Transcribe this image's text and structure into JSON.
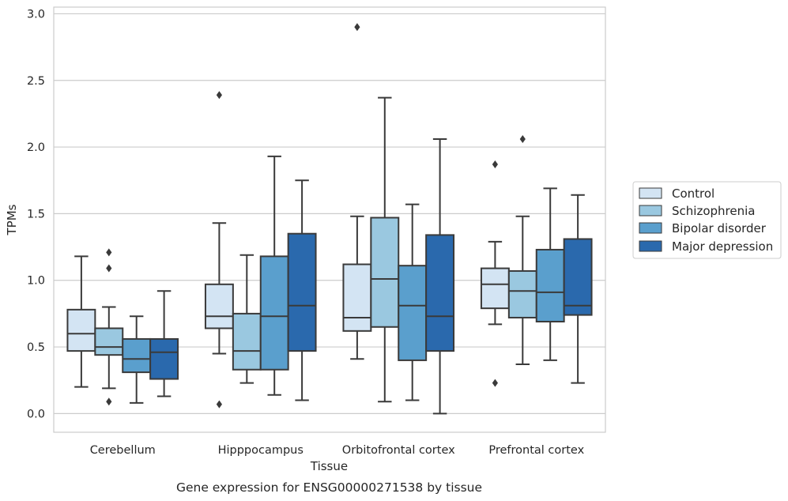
{
  "chart_data": {
    "type": "box",
    "title": "",
    "caption": "Gene expression for ENSG00000271538 by tissue",
    "xlabel": "Tissue",
    "ylabel": "TPMs",
    "ylim": [
      -0.14,
      3.05
    ],
    "yticks": [
      "0.0",
      "0.5",
      "1.0",
      "1.5",
      "2.0",
      "2.5",
      "3.0"
    ],
    "ytick_values": [
      0.0,
      0.5,
      1.0,
      1.5,
      2.0,
      2.5,
      3.0
    ],
    "grid": "horizontal",
    "legend_position": "right",
    "categories": [
      "Cerebellum",
      "Hipppocampus",
      "Orbitofrontal cortex",
      "Prefrontal cortex"
    ],
    "series": [
      {
        "name": "Control",
        "color": "#d3e4f3",
        "boxes": [
          {
            "whisker_low": 0.2,
            "q1": 0.47,
            "median": 0.6,
            "q3": 0.78,
            "whisker_high": 1.18,
            "outliers": []
          },
          {
            "whisker_low": 0.45,
            "q1": 0.64,
            "median": 0.73,
            "q3": 0.97,
            "whisker_high": 1.43,
            "outliers": [
              2.39,
              0.07
            ]
          },
          {
            "whisker_low": 0.41,
            "q1": 0.62,
            "median": 0.72,
            "q3": 1.12,
            "whisker_high": 1.48,
            "outliers": [
              2.9
            ]
          },
          {
            "whisker_low": 0.67,
            "q1": 0.79,
            "median": 0.97,
            "q3": 1.09,
            "whisker_high": 1.29,
            "outliers": [
              1.87,
              0.23
            ]
          }
        ]
      },
      {
        "name": "Schizophrenia",
        "color": "#9ac8e0",
        "boxes": [
          {
            "whisker_low": 0.19,
            "q1": 0.44,
            "median": 0.5,
            "q3": 0.64,
            "whisker_high": 0.8,
            "outliers": [
              1.21,
              1.09,
              0.09
            ]
          },
          {
            "whisker_low": 0.23,
            "q1": 0.33,
            "median": 0.47,
            "q3": 0.75,
            "whisker_high": 1.19,
            "outliers": []
          },
          {
            "whisker_low": 0.09,
            "q1": 0.65,
            "median": 1.01,
            "q3": 1.47,
            "whisker_high": 2.37,
            "outliers": []
          },
          {
            "whisker_low": 0.37,
            "q1": 0.72,
            "median": 0.92,
            "q3": 1.07,
            "whisker_high": 1.48,
            "outliers": [
              2.06
            ]
          }
        ]
      },
      {
        "name": "Bipolar disorder",
        "color": "#5a9fcd",
        "boxes": [
          {
            "whisker_low": 0.08,
            "q1": 0.31,
            "median": 0.41,
            "q3": 0.56,
            "whisker_high": 0.73,
            "outliers": []
          },
          {
            "whisker_low": 0.14,
            "q1": 0.33,
            "median": 0.73,
            "q3": 1.18,
            "whisker_high": 1.93,
            "outliers": []
          },
          {
            "whisker_low": 0.1,
            "q1": 0.4,
            "median": 0.81,
            "q3": 1.11,
            "whisker_high": 1.57,
            "outliers": []
          },
          {
            "whisker_low": 0.4,
            "q1": 0.69,
            "median": 0.91,
            "q3": 1.23,
            "whisker_high": 1.69,
            "outliers": []
          }
        ]
      },
      {
        "name": "Major depression",
        "color": "#2a69ad",
        "boxes": [
          {
            "whisker_low": 0.13,
            "q1": 0.26,
            "median": 0.46,
            "q3": 0.56,
            "whisker_high": 0.92,
            "outliers": []
          },
          {
            "whisker_low": 0.1,
            "q1": 0.47,
            "median": 0.81,
            "q3": 1.35,
            "whisker_high": 1.75,
            "outliers": []
          },
          {
            "whisker_low": 0.0,
            "q1": 0.47,
            "median": 0.73,
            "q3": 1.34,
            "whisker_high": 2.06,
            "outliers": []
          },
          {
            "whisker_low": 0.23,
            "q1": 0.74,
            "median": 0.81,
            "q3": 1.31,
            "whisker_high": 1.64,
            "outliers": []
          }
        ]
      }
    ],
    "colors": {
      "grid": "#cccccc",
      "frame": "#cccccc",
      "box_edge": "#3a3a3a",
      "text": "#262626"
    }
  }
}
